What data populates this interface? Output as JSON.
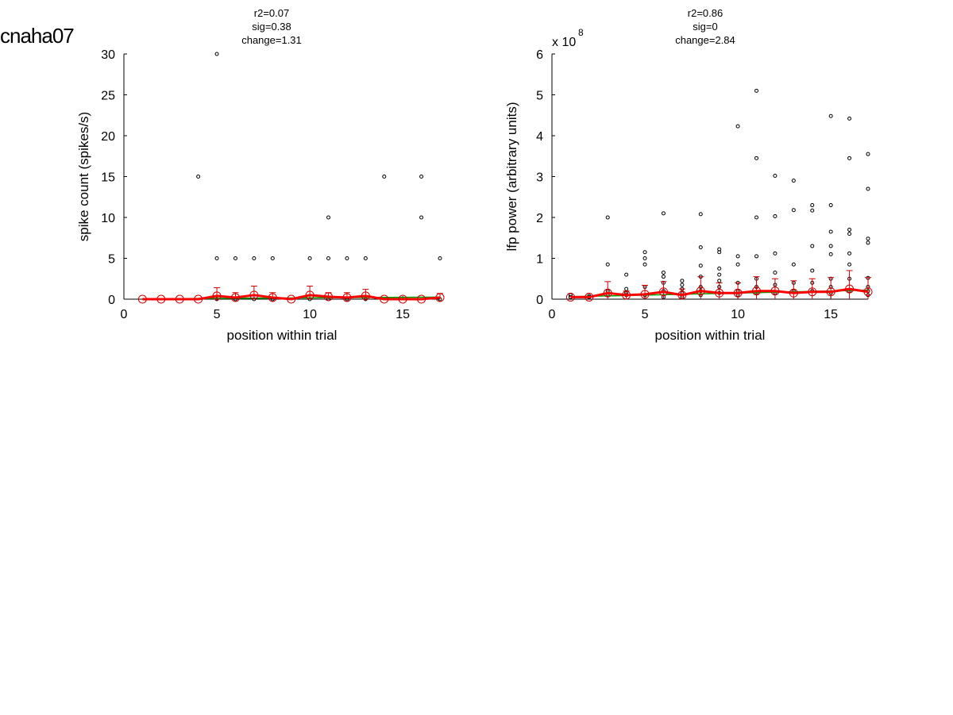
{
  "page_label": "cnaha07",
  "colors": {
    "axis": "#000000",
    "points": "#000000",
    "mean_line": "#ff0000",
    "error_bars": "#cc0000",
    "fit_line": "#00a000",
    "mean_markers": "#cc0000"
  },
  "chart_data": [
    {
      "type": "scatter",
      "stats": [
        "r2=0.07",
        "sig=0.38",
        "change=1.31"
      ],
      "xlabel": "position within trial",
      "ylabel": "spike count (spikes/s)",
      "xlim": [
        0,
        17
      ],
      "ylim": [
        0,
        30
      ],
      "xticks": [
        0,
        5,
        10,
        15
      ],
      "yticks": [
        0,
        5,
        10,
        15,
        20,
        25,
        30
      ],
      "multiplier": "",
      "points": [
        [
          4,
          15
        ],
        [
          5,
          30
        ],
        [
          5,
          5
        ],
        [
          6,
          5
        ],
        [
          7,
          5
        ],
        [
          8,
          5
        ],
        [
          10,
          5
        ],
        [
          11,
          10
        ],
        [
          11,
          5
        ],
        [
          12,
          5
        ],
        [
          13,
          5
        ],
        [
          14,
          15
        ],
        [
          16,
          15
        ],
        [
          16,
          10
        ],
        [
          17,
          5
        ],
        [
          5,
          0
        ],
        [
          6,
          0
        ],
        [
          7,
          0
        ],
        [
          8,
          0
        ],
        [
          10,
          0
        ],
        [
          11,
          0
        ],
        [
          12,
          0
        ],
        [
          13,
          0
        ],
        [
          17,
          0
        ]
      ],
      "mean_series": {
        "x": [
          1,
          2,
          3,
          4,
          5,
          6,
          7,
          8,
          9,
          10,
          11,
          12,
          13,
          14,
          15,
          16,
          17
        ],
        "y": [
          0,
          0,
          0,
          0,
          0.4,
          0.2,
          0.5,
          0.2,
          0,
          0.5,
          0.3,
          0.2,
          0.4,
          0,
          0,
          0,
          0.2
        ],
        "err": [
          0,
          0,
          0,
          0,
          1.0,
          0.6,
          1.1,
          0.6,
          0,
          1.1,
          0.5,
          0.6,
          0.8,
          0,
          0,
          0,
          0.5
        ]
      },
      "fit_line": {
        "x": [
          1,
          17
        ],
        "y": [
          0.05,
          0.25
        ]
      }
    },
    {
      "type": "scatter",
      "stats": [
        "r2=0.86",
        "sig=0",
        "change=2.84"
      ],
      "xlabel": "position within trial",
      "ylabel": "lfp power (arbitrary units)",
      "xlim": [
        0,
        17
      ],
      "ylim": [
        0,
        6
      ],
      "xticks": [
        0,
        5,
        10,
        15
      ],
      "yticks": [
        0,
        1,
        2,
        3,
        4,
        5,
        6
      ],
      "multiplier": {
        "base": "x 10",
        "exponent": "8"
      },
      "points": [
        [
          1,
          0.1
        ],
        [
          1,
          0.05
        ],
        [
          2,
          0.08
        ],
        [
          2,
          0.05
        ],
        [
          3,
          2.0
        ],
        [
          3,
          0.85
        ],
        [
          3,
          0.2
        ],
        [
          3,
          0.1
        ],
        [
          4,
          0.6
        ],
        [
          4,
          0.25
        ],
        [
          4,
          0.15
        ],
        [
          4,
          0.1
        ],
        [
          5,
          1.15
        ],
        [
          5,
          1.0
        ],
        [
          5,
          0.85
        ],
        [
          5,
          0.3
        ],
        [
          5,
          0.1
        ],
        [
          6,
          2.1
        ],
        [
          6,
          0.65
        ],
        [
          6,
          0.55
        ],
        [
          6,
          0.4
        ],
        [
          6,
          0.2
        ],
        [
          6,
          0.05
        ],
        [
          7,
          0.45
        ],
        [
          7,
          0.35
        ],
        [
          7,
          0.25
        ],
        [
          7,
          0.15
        ],
        [
          7,
          0.05
        ],
        [
          8,
          2.08
        ],
        [
          8,
          1.27
        ],
        [
          8,
          0.82
        ],
        [
          8,
          0.55
        ],
        [
          8,
          0.3
        ],
        [
          8,
          0.2
        ],
        [
          8,
          0.1
        ],
        [
          9,
          1.22
        ],
        [
          9,
          1.15
        ],
        [
          9,
          0.75
        ],
        [
          9,
          0.6
        ],
        [
          9,
          0.45
        ],
        [
          9,
          0.3
        ],
        [
          9,
          0.15
        ],
        [
          10,
          4.23
        ],
        [
          10,
          1.05
        ],
        [
          10,
          0.85
        ],
        [
          10,
          0.4
        ],
        [
          10,
          0.2
        ],
        [
          10,
          0.1
        ],
        [
          11,
          5.1
        ],
        [
          11,
          3.45
        ],
        [
          11,
          2.0
        ],
        [
          11,
          1.05
        ],
        [
          11,
          0.5
        ],
        [
          11,
          0.3
        ],
        [
          11,
          0.15
        ],
        [
          12,
          3.02
        ],
        [
          12,
          2.03
        ],
        [
          12,
          1.12
        ],
        [
          12,
          0.65
        ],
        [
          12,
          0.35
        ],
        [
          12,
          0.15
        ],
        [
          13,
          2.9
        ],
        [
          13,
          2.18
        ],
        [
          13,
          0.85
        ],
        [
          13,
          0.4
        ],
        [
          13,
          0.2
        ],
        [
          14,
          2.3
        ],
        [
          14,
          2.17
        ],
        [
          14,
          1.3
        ],
        [
          14,
          0.7
        ],
        [
          14,
          0.4
        ],
        [
          14,
          0.2
        ],
        [
          15,
          4.48
        ],
        [
          15,
          2.3
        ],
        [
          15,
          1.65
        ],
        [
          15,
          1.3
        ],
        [
          15,
          1.1
        ],
        [
          15,
          0.5
        ],
        [
          15,
          0.3
        ],
        [
          15,
          0.15
        ],
        [
          16,
          4.42
        ],
        [
          16,
          3.45
        ],
        [
          16,
          1.7
        ],
        [
          16,
          1.6
        ],
        [
          16,
          1.12
        ],
        [
          16,
          0.85
        ],
        [
          16,
          0.5
        ],
        [
          16,
          0.2
        ],
        [
          17,
          3.55
        ],
        [
          17,
          2.7
        ],
        [
          17,
          1.48
        ],
        [
          17,
          1.38
        ],
        [
          17,
          0.52
        ],
        [
          17,
          0.3
        ],
        [
          17,
          0.2
        ],
        [
          17,
          0.1
        ]
      ],
      "mean_series": {
        "x": [
          1,
          2,
          3,
          4,
          5,
          6,
          7,
          8,
          9,
          10,
          11,
          12,
          13,
          14,
          15,
          16,
          17
        ],
        "y": [
          0.05,
          0.05,
          0.15,
          0.1,
          0.12,
          0.18,
          0.1,
          0.2,
          0.15,
          0.15,
          0.2,
          0.2,
          0.15,
          0.18,
          0.18,
          0.25,
          0.18
        ],
        "err": [
          0,
          0,
          0.28,
          0.1,
          0.22,
          0.25,
          0.15,
          0.35,
          0.25,
          0.25,
          0.35,
          0.3,
          0.3,
          0.32,
          0.35,
          0.45,
          0.35
        ]
      },
      "fit_line": {
        "x": [
          1,
          17
        ],
        "y": [
          0.06,
          0.22
        ]
      }
    }
  ]
}
